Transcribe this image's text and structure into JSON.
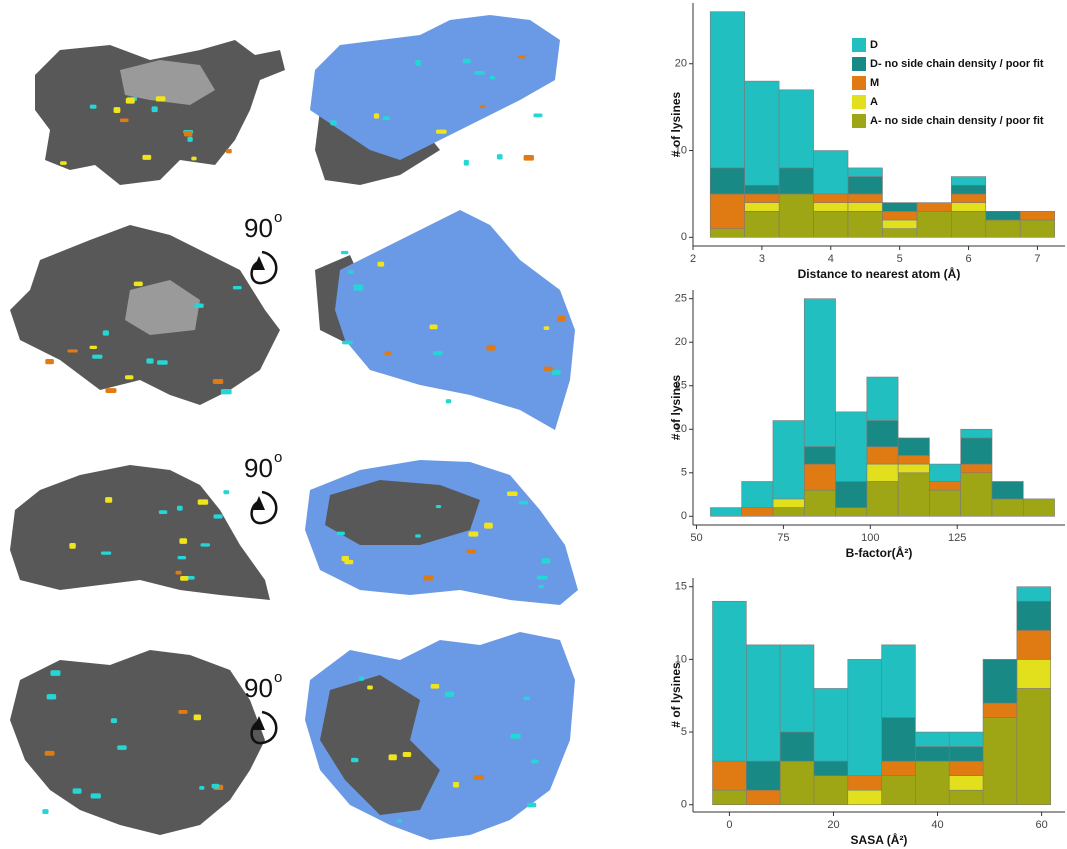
{
  "rotation_labels": [
    {
      "number": "90",
      "sup": "o"
    },
    {
      "number": "90",
      "sup": "o"
    },
    {
      "number": "90",
      "sup": "o"
    }
  ],
  "chart_data": [
    {
      "type": "histogram",
      "xlabel": "Distance to nearest atom (Å)",
      "ylabel": "# of lysines",
      "bins": [
        2.25,
        2.75,
        3.25,
        3.75,
        4.25,
        4.75,
        5.25,
        5.75,
        6.25,
        6.75,
        7.25
      ],
      "series": [
        {
          "name": "D",
          "color": "#22bfc0",
          "values": [
            18,
            12,
            9,
            5,
            1,
            0,
            0,
            1,
            0,
            0
          ]
        },
        {
          "name": "D- no side chain density / poor fit",
          "color": "#188985",
          "values": [
            3,
            1,
            3,
            0,
            2,
            1,
            0,
            1,
            1,
            0
          ]
        },
        {
          "name": "M",
          "color": "#e07a12",
          "values": [
            4,
            1,
            0,
            1,
            1,
            1,
            1,
            1,
            0,
            1
          ]
        },
        {
          "name": "A",
          "color": "#e2e01c",
          "values": [
            0,
            1,
            0,
            1,
            1,
            1,
            0,
            1,
            0,
            0
          ]
        },
        {
          "name": "A- no side chain density / poor fit",
          "color": "#9fa616",
          "values": [
            1,
            3,
            5,
            3,
            3,
            1,
            3,
            3,
            2,
            2
          ]
        }
      ],
      "xlim": [
        2,
        7.4
      ],
      "xticks": [
        2,
        3,
        4,
        5,
        6,
        7
      ],
      "ylim": [
        -1,
        27
      ],
      "yticks": [
        0,
        10,
        20
      ],
      "legend": "top-right"
    },
    {
      "type": "histogram",
      "xlabel": "B-factor(Å²)",
      "ylabel": "# of lysines",
      "bins": [
        54,
        63,
        72,
        81,
        90,
        99,
        108,
        117,
        126,
        135,
        144,
        153
      ],
      "series": [
        {
          "color": "#22bfc0",
          "values": [
            1,
            3,
            9,
            17,
            8,
            5,
            0,
            2,
            1,
            0,
            0
          ]
        },
        {
          "color": "#188985",
          "values": [
            0,
            0,
            0,
            2,
            3,
            3,
            2,
            0,
            3,
            2,
            0
          ]
        },
        {
          "color": "#e07a12",
          "values": [
            0,
            1,
            0,
            3,
            0,
            2,
            1,
            1,
            1,
            0,
            0
          ]
        },
        {
          "color": "#e2e01c",
          "values": [
            0,
            0,
            1,
            0,
            0,
            2,
            1,
            0,
            0,
            0,
            0
          ]
        },
        {
          "color": "#9fa616",
          "values": [
            0,
            0,
            1,
            3,
            1,
            4,
            5,
            3,
            5,
            2,
            2
          ]
        }
      ],
      "xlim": [
        49,
        156
      ],
      "xticks": [
        50,
        75,
        100,
        125
      ],
      "ylim": [
        -1,
        26
      ],
      "yticks": [
        0,
        5,
        10,
        15,
        20,
        25
      ]
    },
    {
      "type": "histogram",
      "xlabel": "SASA (Å²)",
      "ylabel": "# of lysines",
      "bins": [
        -3.25,
        3.25,
        9.75,
        16.25,
        22.75,
        29.25,
        35.75,
        42.25,
        48.75,
        55.25,
        61.75
      ],
      "series": [
        {
          "color": "#22bfc0",
          "values": [
            11,
            8,
            6,
            5,
            8,
            5,
            1,
            1,
            0,
            1
          ]
        },
        {
          "color": "#188985",
          "values": [
            0,
            2,
            2,
            1,
            0,
            3,
            1,
            1,
            3,
            2
          ]
        },
        {
          "color": "#e07a12",
          "values": [
            2,
            1,
            0,
            0,
            1,
            1,
            0,
            1,
            1,
            2
          ]
        },
        {
          "color": "#e2e01c",
          "values": [
            0,
            0,
            0,
            0,
            1,
            0,
            0,
            1,
            0,
            2
          ]
        },
        {
          "color": "#9fa616",
          "values": [
            1,
            0,
            3,
            2,
            0,
            2,
            3,
            1,
            6,
            8
          ]
        }
      ],
      "xlim": [
        -7,
        64.5
      ],
      "xticks": [
        0,
        20,
        40,
        60
      ],
      "ylim": [
        -0.5,
        15.6
      ],
      "yticks": [
        0,
        5,
        10,
        15
      ]
    }
  ]
}
